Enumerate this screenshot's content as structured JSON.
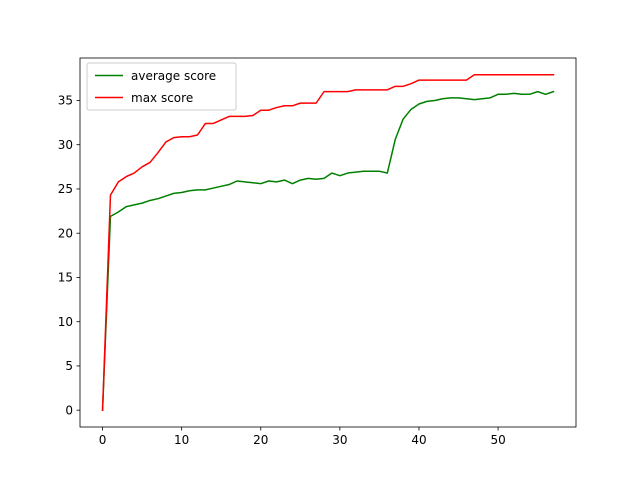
{
  "chart_data": {
    "type": "line",
    "title": "",
    "xlabel": "",
    "ylabel": "",
    "xlim": [
      -2.85,
      59.85
    ],
    "ylim": [
      -1.9,
      39.8
    ],
    "xticks": [
      0,
      10,
      20,
      30,
      40,
      50
    ],
    "yticks": [
      0,
      5,
      10,
      15,
      20,
      25,
      30,
      35
    ],
    "grid": false,
    "legend_position": "top-left",
    "series": [
      {
        "name": "average score",
        "color": "#008000",
        "x": [
          0,
          1,
          2,
          3,
          4,
          5,
          6,
          7,
          8,
          9,
          10,
          11,
          12,
          13,
          14,
          15,
          16,
          17,
          18,
          19,
          20,
          21,
          22,
          23,
          24,
          25,
          26,
          27,
          28,
          29,
          30,
          31,
          32,
          33,
          34,
          35,
          36,
          37,
          38,
          39,
          40,
          41,
          42,
          43,
          44,
          45,
          46,
          47,
          48,
          49,
          50,
          51,
          52,
          53,
          54,
          55,
          56,
          57
        ],
        "y": [
          0,
          21.9,
          22.4,
          23.0,
          23.2,
          23.4,
          23.7,
          23.9,
          24.2,
          24.5,
          24.6,
          24.8,
          24.9,
          24.9,
          25.1,
          25.3,
          25.5,
          25.9,
          25.8,
          25.7,
          25.6,
          25.9,
          25.8,
          26.0,
          25.6,
          26.0,
          26.2,
          26.1,
          26.2,
          26.8,
          26.5,
          26.8,
          26.9,
          27.0,
          27.0,
          27.0,
          26.8,
          30.6,
          32.9,
          34.0,
          34.6,
          34.9,
          35.0,
          35.2,
          35.3,
          35.3,
          35.2,
          35.1,
          35.2,
          35.3,
          35.7,
          35.7,
          35.8,
          35.7,
          35.7,
          36.0,
          35.7,
          36.0
        ]
      },
      {
        "name": "max score",
        "color": "#ff0000",
        "x": [
          0,
          1,
          2,
          3,
          4,
          5,
          6,
          7,
          8,
          9,
          10,
          11,
          12,
          13,
          14,
          15,
          16,
          17,
          18,
          19,
          20,
          21,
          22,
          23,
          24,
          25,
          26,
          27,
          28,
          29,
          30,
          31,
          32,
          33,
          34,
          35,
          36,
          37,
          38,
          39,
          40,
          41,
          42,
          43,
          44,
          45,
          46,
          47,
          48,
          49,
          50,
          51,
          52,
          53,
          54,
          55,
          56,
          57
        ],
        "y": [
          0,
          24.3,
          25.8,
          26.4,
          26.8,
          27.5,
          28.0,
          29.1,
          30.3,
          30.8,
          30.9,
          30.9,
          31.1,
          32.4,
          32.4,
          32.8,
          33.2,
          33.2,
          33.2,
          33.3,
          33.9,
          33.9,
          34.2,
          34.4,
          34.4,
          34.7,
          34.7,
          34.7,
          36.0,
          36.0,
          36.0,
          36.0,
          36.2,
          36.2,
          36.2,
          36.2,
          36.2,
          36.6,
          36.6,
          36.9,
          37.3,
          37.3,
          37.3,
          37.3,
          37.3,
          37.3,
          37.3,
          37.9,
          37.9,
          37.9,
          37.9,
          37.9,
          37.9,
          37.9,
          37.9,
          37.9,
          37.9,
          37.9
        ]
      }
    ]
  }
}
